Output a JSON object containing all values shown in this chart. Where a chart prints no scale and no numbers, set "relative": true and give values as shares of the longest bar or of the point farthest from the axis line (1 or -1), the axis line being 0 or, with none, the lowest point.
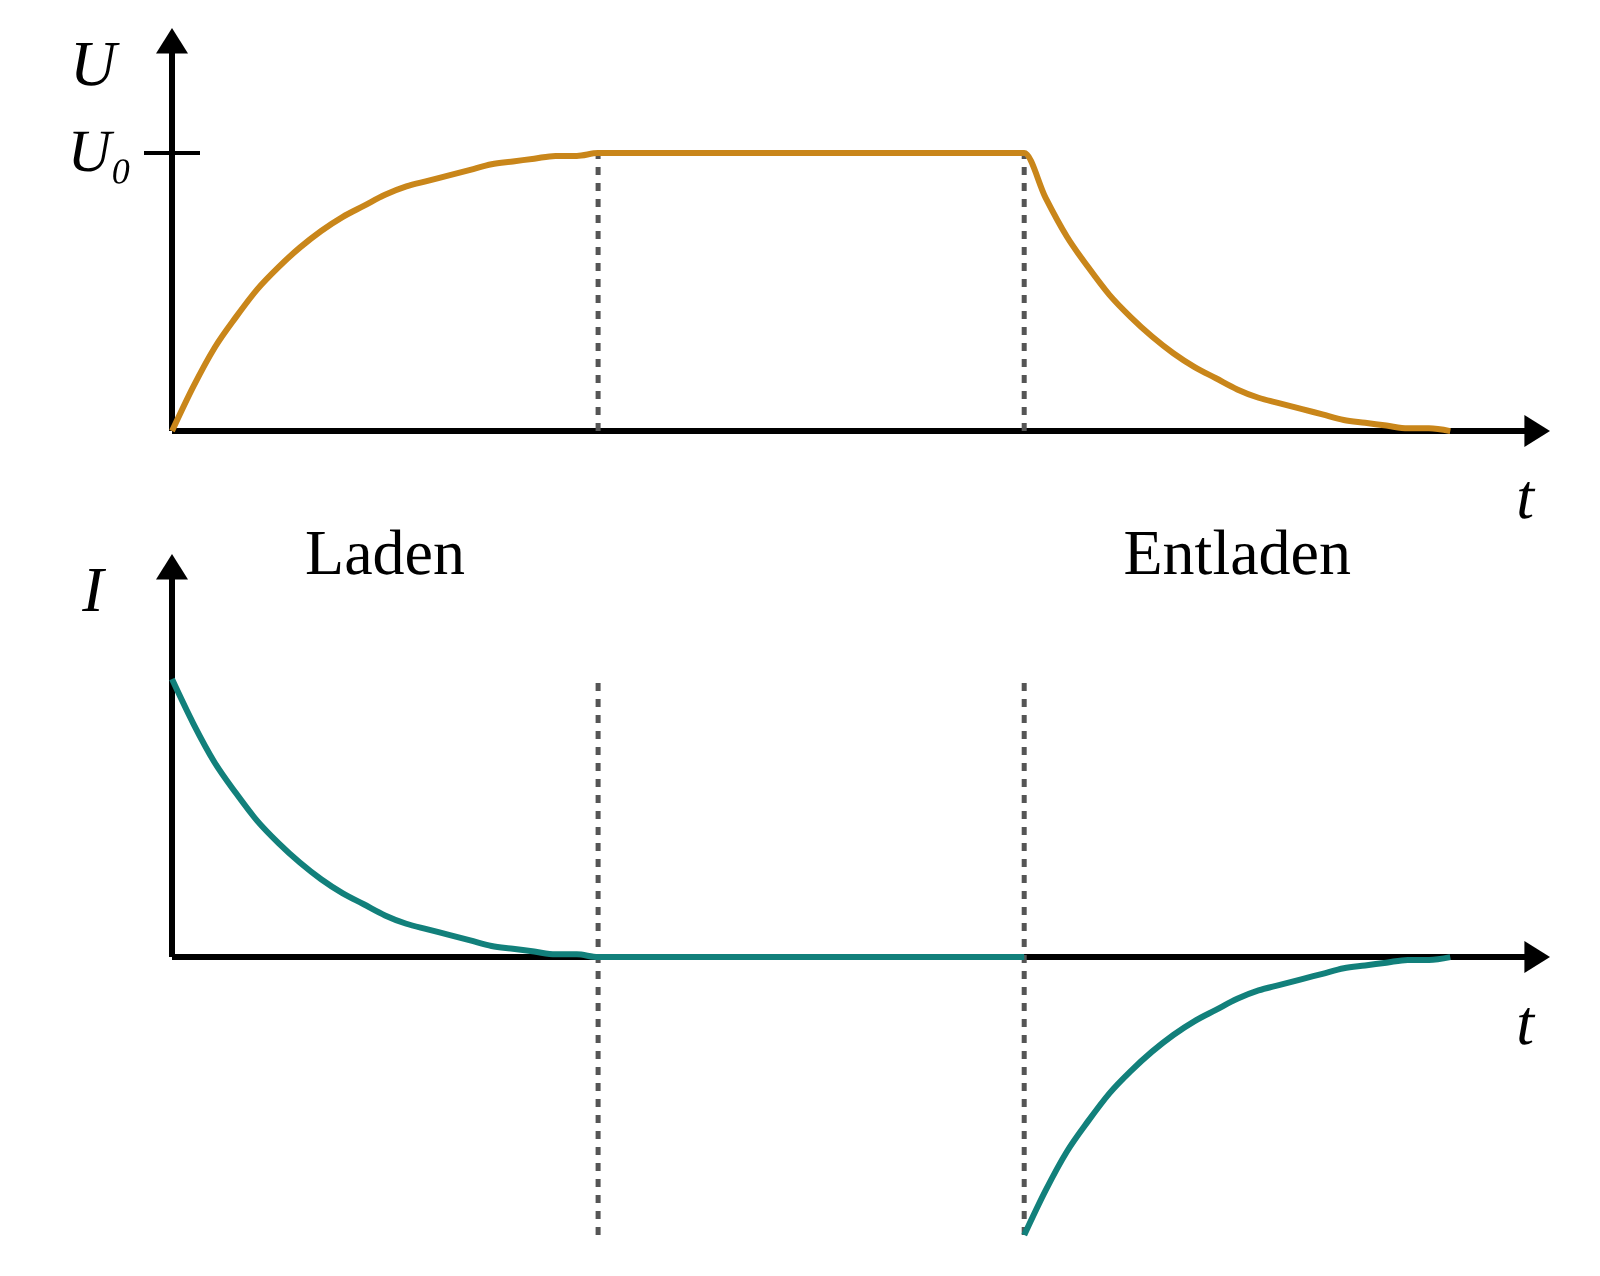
{
  "chart_data": [
    {
      "type": "line",
      "relative": true,
      "xlabel": "t",
      "ylabel": "U",
      "categories": [
        null,
        null,
        null,
        null,
        null,
        null,
        null,
        null,
        null,
        null,
        null,
        null,
        null,
        null,
        null,
        null,
        null,
        null,
        null,
        null,
        null,
        null,
        null,
        null,
        null,
        null,
        null,
        null,
        null,
        null,
        null,
        null,
        null,
        null,
        null,
        null,
        null,
        null,
        null,
        null,
        null,
        null,
        null,
        null,
        null,
        null,
        null,
        null,
        null,
        null,
        null,
        null,
        null,
        null,
        null,
        null,
        null,
        null,
        null,
        null,
        null
      ],
      "series": [
        {
          "color": "#c9861a",
          "values": [
            0,
            0.16,
            0.3,
            0.41,
            0.51,
            0.59,
            0.66,
            0.72,
            0.77,
            0.81,
            0.85,
            0.88,
            0.9,
            0.92,
            0.94,
            0.96,
            0.97,
            0.98,
            0.99,
            0.99,
            1,
            1,
            1,
            1,
            1,
            1,
            1,
            1,
            1,
            1,
            1,
            1,
            1,
            1,
            1,
            1,
            1,
            1,
            1,
            1,
            1,
            0.84,
            0.7,
            0.59,
            0.49,
            0.41,
            0.34,
            0.28,
            0.23,
            0.19,
            0.15,
            0.12,
            0.1,
            0.08,
            0.06,
            0.04,
            0.03,
            0.02,
            0.01,
            0.01,
            0
          ]
        }
      ],
      "annotations": [
        "U₀"
      ]
    },
    {
      "type": "line",
      "relative": true,
      "xlabel": "t",
      "ylabel": "I",
      "categories": [
        null,
        null,
        null,
        null,
        null,
        null,
        null,
        null,
        null,
        null,
        null,
        null,
        null,
        null,
        null,
        null,
        null,
        null,
        null,
        null,
        null,
        null,
        null,
        null,
        null,
        null,
        null,
        null,
        null,
        null,
        null,
        null,
        null,
        null,
        null,
        null,
        null,
        null,
        null,
        null,
        null,
        null,
        null,
        null,
        null,
        null,
        null,
        null,
        null,
        null,
        null,
        null,
        null,
        null,
        null,
        null,
        null,
        null,
        null,
        null,
        null
      ],
      "series": [
        {
          "color": "#12807b",
          "values": [
            1,
            0.84,
            0.7,
            0.59,
            0.49,
            0.41,
            0.34,
            0.28,
            0.23,
            0.19,
            0.15,
            0.12,
            0.1,
            0.08,
            0.06,
            0.04,
            0.03,
            0.02,
            0.01,
            0.01,
            0,
            0,
            0,
            0,
            0,
            0,
            0,
            0,
            0,
            0,
            0,
            0,
            0,
            0,
            0,
            0,
            0,
            0,
            0,
            0,
            0,
            null,
            null,
            null,
            null,
            null,
            null,
            null,
            null,
            null,
            null,
            null,
            null,
            null,
            null,
            null,
            null,
            null,
            null,
            null,
            null
          ]
        },
        {
          "color": "#12807b",
          "values": [
            null,
            null,
            null,
            null,
            null,
            null,
            null,
            null,
            null,
            null,
            null,
            null,
            null,
            null,
            null,
            null,
            null,
            null,
            null,
            null,
            null,
            null,
            null,
            null,
            null,
            null,
            null,
            null,
            null,
            null,
            null,
            null,
            null,
            null,
            null,
            null,
            null,
            null,
            null,
            null,
            -1,
            -0.84,
            -0.7,
            -0.59,
            -0.49,
            -0.41,
            -0.34,
            -0.28,
            -0.23,
            -0.19,
            -0.15,
            -0.12,
            -0.1,
            -0.08,
            -0.06,
            -0.04,
            -0.03,
            -0.02,
            -0.01,
            -0.01,
            0
          ]
        }
      ],
      "annotations": [
        "Laden",
        "Entladen"
      ]
    }
  ]
}
